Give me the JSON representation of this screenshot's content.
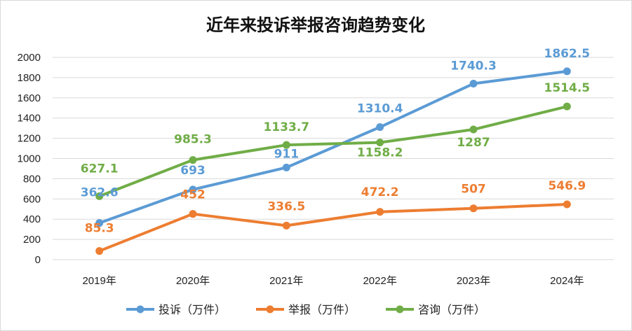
{
  "chart_data": {
    "type": "line",
    "title": "近年来投诉举报咨询趋势变化",
    "categories": [
      "2019年",
      "2020年",
      "2021年",
      "2022年",
      "2023年",
      "2024年"
    ],
    "ylim": [
      0,
      2000
    ],
    "yticks": [
      0,
      200,
      400,
      600,
      800,
      1000,
      1200,
      1400,
      1600,
      1800,
      2000
    ],
    "grid": true,
    "legend_position": "bottom",
    "series": [
      {
        "name": "投诉（万件）",
        "color": "#5b9bd5",
        "values": [
          362.6,
          693,
          911,
          1310.4,
          1740.3,
          1862.5
        ],
        "labels": [
          "362.6",
          "693",
          "911",
          "1310.4",
          "1740.3",
          "1862.5"
        ]
      },
      {
        "name": "举报（万件）",
        "color": "#ed7d31",
        "values": [
          85.3,
          452,
          336.5,
          472.2,
          507,
          546.9
        ],
        "labels": [
          "85.3",
          "452",
          "336.5",
          "472.2",
          "507",
          "546.9"
        ]
      },
      {
        "name": "咨询（万件）",
        "color": "#70ad47",
        "values": [
          627.1,
          985.3,
          1133.7,
          1158.2,
          1287,
          1514.5
        ],
        "labels": [
          "627.1",
          "985.3",
          "1133.7",
          "1158.2",
          "1287",
          "1514.5"
        ]
      }
    ]
  }
}
